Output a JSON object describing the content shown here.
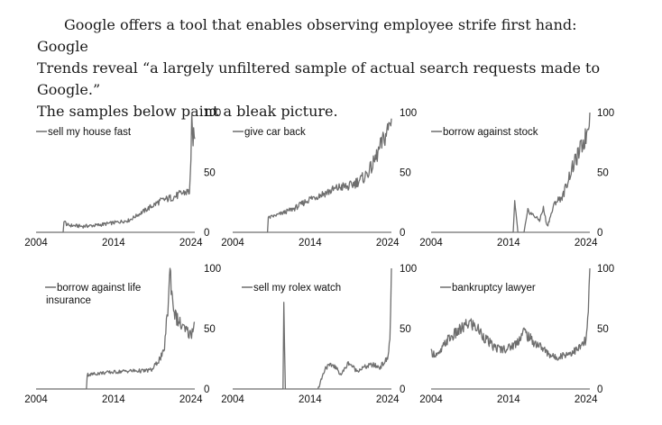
{
  "intro": {
    "line1": "Google offers a tool that enables observing employee strife first hand: Google",
    "line2": "Trends reveal “a largely unfiltered sample of actual search requests made to Google.”",
    "line3": "The samples below paint a bleak picture."
  },
  "colors": {
    "line": "#6e6e6e",
    "axis": "#555555",
    "text": "#111111"
  },
  "chart_data": [
    {
      "type": "line",
      "series": [
        {
          "name": "sell my house fast",
          "x": [
            2004,
            2007.5,
            2007.6,
            2008,
            2010,
            2012,
            2014,
            2015,
            2016,
            2017,
            2018,
            2019,
            2020,
            2021,
            2022,
            2023,
            2023.8,
            2024.0,
            2024.1,
            2024.2,
            2024.5
          ],
          "y": [
            0,
            0,
            10,
            6,
            5,
            6,
            8,
            9,
            10,
            14,
            18,
            22,
            26,
            28,
            30,
            33,
            34,
            55,
            100,
            80,
            78
          ]
        }
      ],
      "x_ticks": [
        "2004",
        "2014",
        "2024"
      ],
      "y_ticks": [
        "100",
        "50",
        "0"
      ],
      "xlim": [
        2004,
        2024.5
      ],
      "ylim": [
        0,
        100
      ],
      "legend": "top-left"
    },
    {
      "type": "line",
      "series": [
        {
          "name": "give car back",
          "x": [
            2004,
            2008.5,
            2008.6,
            2010,
            2012,
            2014,
            2016,
            2018,
            2019,
            2020,
            2021,
            2022,
            2023,
            2024,
            2024.5
          ],
          "y": [
            0,
            0,
            12,
            15,
            20,
            28,
            33,
            38,
            38,
            42,
            46,
            55,
            70,
            85,
            95
          ]
        }
      ],
      "x_ticks": [
        "2004",
        "2014",
        "2024"
      ],
      "y_ticks": [
        "100",
        "50",
        "0"
      ],
      "xlim": [
        2004,
        2024.5
      ],
      "ylim": [
        0,
        100
      ],
      "legend": "top-left"
    },
    {
      "type": "line",
      "series": [
        {
          "name": "borrow against stock",
          "x": [
            2004,
            2014,
            2014.6,
            2014.8,
            2015.2,
            2016,
            2016.5,
            2018,
            2018.5,
            2019,
            2020,
            2021,
            2022,
            2023,
            2024,
            2024.5
          ],
          "y": [
            0,
            0,
            0,
            25,
            0,
            0,
            18,
            10,
            20,
            5,
            25,
            30,
            50,
            65,
            80,
            100
          ]
        }
      ],
      "x_ticks": [
        "2004",
        "2014",
        "2024"
      ],
      "y_ticks": [
        "100",
        "50",
        "0"
      ],
      "xlim": [
        2004,
        2024.5
      ],
      "ylim": [
        0,
        100
      ],
      "legend": "top-left"
    },
    {
      "type": "line",
      "series": [
        {
          "name": "borrow against life insurance",
          "x": [
            2004,
            2010.5,
            2010.6,
            2011,
            2012,
            2014,
            2016,
            2018,
            2019,
            2020.5,
            2021,
            2021.3,
            2021.6,
            2022,
            2023,
            2024,
            2024.5
          ],
          "y": [
            0,
            0,
            12,
            12,
            13,
            14,
            15,
            15,
            16,
            30,
            65,
            100,
            75,
            60,
            50,
            45,
            55
          ]
        }
      ],
      "x_ticks": [
        "2004",
        "2014",
        "2024"
      ],
      "y_ticks": [
        "100",
        "50",
        "0"
      ],
      "xlim": [
        2004,
        2024.5
      ],
      "ylim": [
        0,
        100
      ],
      "legend": "top-left"
    },
    {
      "type": "line",
      "series": [
        {
          "name": "sell my rolex watch",
          "x": [
            2004,
            2010.5,
            2010.6,
            2010.8,
            2015,
            2016,
            2017,
            2018,
            2019,
            2020,
            2021,
            2022,
            2023,
            2024,
            2024.3,
            2024.5
          ],
          "y": [
            0,
            0,
            65,
            0,
            0,
            18,
            20,
            12,
            22,
            15,
            18,
            20,
            18,
            25,
            40,
            100
          ]
        }
      ],
      "x_ticks": [
        "2004",
        "2014",
        "2024"
      ],
      "y_ticks": [
        "100",
        "50",
        "0"
      ],
      "xlim": [
        2004,
        2024.5
      ],
      "ylim": [
        0,
        100
      ],
      "legend": "top-left"
    },
    {
      "type": "line",
      "series": [
        {
          "name": "bankruptcy lawyer",
          "x": [
            2004,
            2005,
            2006,
            2007,
            2008,
            2009,
            2010,
            2011,
            2012,
            2013,
            2014,
            2015,
            2016,
            2017,
            2018,
            2019,
            2020,
            2021,
            2022,
            2023,
            2024,
            2024.3,
            2024.5
          ],
          "y": [
            30,
            28,
            40,
            45,
            50,
            55,
            50,
            42,
            35,
            33,
            34,
            38,
            48,
            40,
            36,
            30,
            26,
            28,
            30,
            33,
            40,
            60,
            100
          ]
        }
      ],
      "x_ticks": [
        "2004",
        "2014",
        "2024"
      ],
      "y_ticks": [
        "100",
        "50",
        "0"
      ],
      "xlim": [
        2004,
        2024.5
      ],
      "ylim": [
        0,
        100
      ],
      "legend": "top-left"
    }
  ]
}
